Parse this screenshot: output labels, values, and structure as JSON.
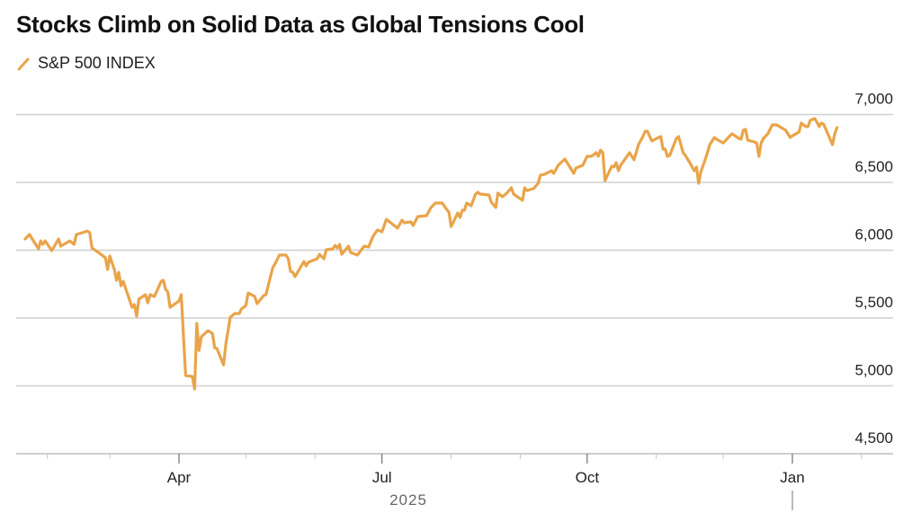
{
  "chart_data": {
    "type": "line",
    "title": "Stocks Climb on Solid Data as Global Tensions Cool",
    "legend": [
      {
        "name": "S&P 500 INDEX",
        "color": "#E9A44A"
      }
    ],
    "legend_placement": "top-left",
    "xlabel": "2025",
    "ylabel": "",
    "x_unit": "days since 2025-01-01",
    "ylim": [
      4500,
      7000
    ],
    "grid": true,
    "y_ticks": [
      {
        "value": 7000,
        "label": "7,000"
      },
      {
        "value": 6500,
        "label": "6,500"
      },
      {
        "value": 6000,
        "label": "6,000"
      },
      {
        "value": 5500,
        "label": "5,500"
      },
      {
        "value": 5000,
        "label": "5,000"
      },
      {
        "value": 4500,
        "label": "4,500"
      }
    ],
    "x_ticks": [
      {
        "day": 90,
        "label": "Apr"
      },
      {
        "day": 181,
        "label": "Jul"
      },
      {
        "day": 273,
        "label": "Oct"
      },
      {
        "day": 365,
        "label": "Jan"
      }
    ],
    "x_minor_ticks": [
      31,
      59,
      120,
      151,
      212,
      243,
      304,
      334,
      396
    ],
    "year_label": "2025",
    "series": [
      {
        "name": "S&P 500 INDEX",
        "color": "#E9A44A",
        "points": [
          [
            21,
            6083
          ],
          [
            23,
            6116
          ],
          [
            27,
            6010
          ],
          [
            28,
            6069
          ],
          [
            29,
            6043
          ],
          [
            30,
            6069
          ],
          [
            33,
            5997
          ],
          [
            36,
            6083
          ],
          [
            37,
            6030
          ],
          [
            41,
            6069
          ],
          [
            43,
            6043
          ],
          [
            44,
            6116
          ],
          [
            49,
            6142
          ],
          [
            50,
            6129
          ],
          [
            51,
            6016
          ],
          [
            55,
            5970
          ],
          [
            57,
            5944
          ],
          [
            58,
            5858
          ],
          [
            59,
            5957
          ],
          [
            61,
            5858
          ],
          [
            62,
            5778
          ],
          [
            63,
            5838
          ],
          [
            64,
            5738
          ],
          [
            65,
            5771
          ],
          [
            69,
            5579
          ],
          [
            70,
            5599
          ],
          [
            71,
            5513
          ],
          [
            72,
            5639
          ],
          [
            75,
            5672
          ],
          [
            76,
            5612
          ],
          [
            77,
            5672
          ],
          [
            79,
            5659
          ],
          [
            82,
            5771
          ],
          [
            83,
            5778
          ],
          [
            84,
            5712
          ],
          [
            85,
            5692
          ],
          [
            86,
            5579
          ],
          [
            90,
            5626
          ],
          [
            91,
            5672
          ],
          [
            93,
            5076
          ],
          [
            96,
            5069
          ],
          [
            97,
            4977
          ],
          [
            98,
            5460
          ],
          [
            99,
            5261
          ],
          [
            100,
            5361
          ],
          [
            103,
            5407
          ],
          [
            105,
            5387
          ],
          [
            106,
            5281
          ],
          [
            107,
            5275
          ],
          [
            110,
            5155
          ],
          [
            111,
            5308
          ],
          [
            113,
            5506
          ],
          [
            115,
            5533
          ],
          [
            117,
            5533
          ],
          [
            118,
            5566
          ],
          [
            120,
            5593
          ],
          [
            121,
            5685
          ],
          [
            124,
            5659
          ],
          [
            125,
            5606
          ],
          [
            128,
            5666
          ],
          [
            129,
            5672
          ],
          [
            132,
            5871
          ],
          [
            133,
            5897
          ],
          [
            135,
            5964
          ],
          [
            138,
            5964
          ],
          [
            139,
            5937
          ],
          [
            140,
            5844
          ],
          [
            141,
            5838
          ],
          [
            142,
            5805
          ],
          [
            146,
            5917
          ],
          [
            147,
            5884
          ],
          [
            148,
            5911
          ],
          [
            152,
            5937
          ],
          [
            153,
            5970
          ],
          [
            155,
            5937
          ],
          [
            156,
            6003
          ],
          [
            159,
            6010
          ],
          [
            160,
            6036
          ],
          [
            161,
            6016
          ],
          [
            162,
            6043
          ],
          [
            163,
            5970
          ],
          [
            166,
            6030
          ],
          [
            167,
            5983
          ],
          [
            170,
            5964
          ],
          [
            173,
            6030
          ],
          [
            175,
            6023
          ],
          [
            177,
            6103
          ],
          [
            179,
            6149
          ],
          [
            181,
            6136
          ],
          [
            183,
            6228
          ],
          [
            188,
            6162
          ],
          [
            190,
            6222
          ],
          [
            191,
            6202
          ],
          [
            194,
            6209
          ],
          [
            195,
            6182
          ],
          [
            197,
            6248
          ],
          [
            201,
            6255
          ],
          [
            203,
            6315
          ],
          [
            205,
            6348
          ],
          [
            208,
            6348
          ],
          [
            210,
            6301
          ],
          [
            211,
            6281
          ],
          [
            212,
            6175
          ],
          [
            215,
            6275
          ],
          [
            216,
            6242
          ],
          [
            217,
            6295
          ],
          [
            218,
            6295
          ],
          [
            219,
            6348
          ],
          [
            221,
            6328
          ],
          [
            223,
            6414
          ],
          [
            224,
            6427
          ],
          [
            225,
            6414
          ],
          [
            229,
            6407
          ],
          [
            230,
            6354
          ],
          [
            232,
            6315
          ],
          [
            233,
            6421
          ],
          [
            235,
            6394
          ],
          [
            237,
            6421
          ],
          [
            239,
            6460
          ],
          [
            240,
            6414
          ],
          [
            244,
            6368
          ],
          [
            245,
            6460
          ],
          [
            246,
            6440
          ],
          [
            249,
            6454
          ],
          [
            251,
            6493
          ],
          [
            252,
            6553
          ],
          [
            254,
            6560
          ],
          [
            257,
            6586
          ],
          [
            258,
            6566
          ],
          [
            260,
            6626
          ],
          [
            263,
            6672
          ],
          [
            265,
            6619
          ],
          [
            267,
            6566
          ],
          [
            268,
            6606
          ],
          [
            271,
            6626
          ],
          [
            273,
            6692
          ],
          [
            275,
            6692
          ],
          [
            277,
            6719
          ],
          [
            278,
            6692
          ],
          [
            279,
            6738
          ],
          [
            280,
            6719
          ],
          [
            281,
            6513
          ],
          [
            284,
            6619
          ],
          [
            285,
            6613
          ],
          [
            286,
            6646
          ],
          [
            287,
            6586
          ],
          [
            288,
            6626
          ],
          [
            292,
            6719
          ],
          [
            294,
            6666
          ],
          [
            296,
            6778
          ],
          [
            298,
            6838
          ],
          [
            299,
            6877
          ],
          [
            300,
            6877
          ],
          [
            302,
            6805
          ],
          [
            305,
            6831
          ],
          [
            306,
            6838
          ],
          [
            307,
            6745
          ],
          [
            308,
            6745
          ],
          [
            309,
            6692
          ],
          [
            310,
            6699
          ],
          [
            313,
            6824
          ],
          [
            314,
            6838
          ],
          [
            316,
            6719
          ],
          [
            317,
            6699
          ],
          [
            319,
            6646
          ],
          [
            321,
            6586
          ],
          [
            322,
            6613
          ],
          [
            323,
            6493
          ],
          [
            324,
            6579
          ],
          [
            326,
            6672
          ],
          [
            328,
            6778
          ],
          [
            330,
            6831
          ],
          [
            331,
            6818
          ],
          [
            334,
            6791
          ],
          [
            337,
            6844
          ],
          [
            338,
            6858
          ],
          [
            341,
            6824
          ],
          [
            342,
            6818
          ],
          [
            343,
            6884
          ],
          [
            344,
            6891
          ],
          [
            345,
            6811
          ],
          [
            348,
            6798
          ],
          [
            349,
            6791
          ],
          [
            350,
            6692
          ],
          [
            351,
            6791
          ],
          [
            352,
            6824
          ],
          [
            354,
            6858
          ],
          [
            356,
            6924
          ],
          [
            358,
            6924
          ],
          [
            362,
            6884
          ],
          [
            364,
            6831
          ],
          [
            365,
            6844
          ],
          [
            368,
            6871
          ],
          [
            369,
            6937
          ],
          [
            371,
            6911
          ],
          [
            372,
            6911
          ],
          [
            373,
            6957
          ],
          [
            375,
            6970
          ],
          [
            376,
            6944
          ],
          [
            377,
            6911
          ],
          [
            378,
            6937
          ],
          [
            379,
            6930
          ],
          [
            383,
            6778
          ],
          [
            384,
            6858
          ],
          [
            385,
            6904
          ]
        ]
      }
    ]
  }
}
